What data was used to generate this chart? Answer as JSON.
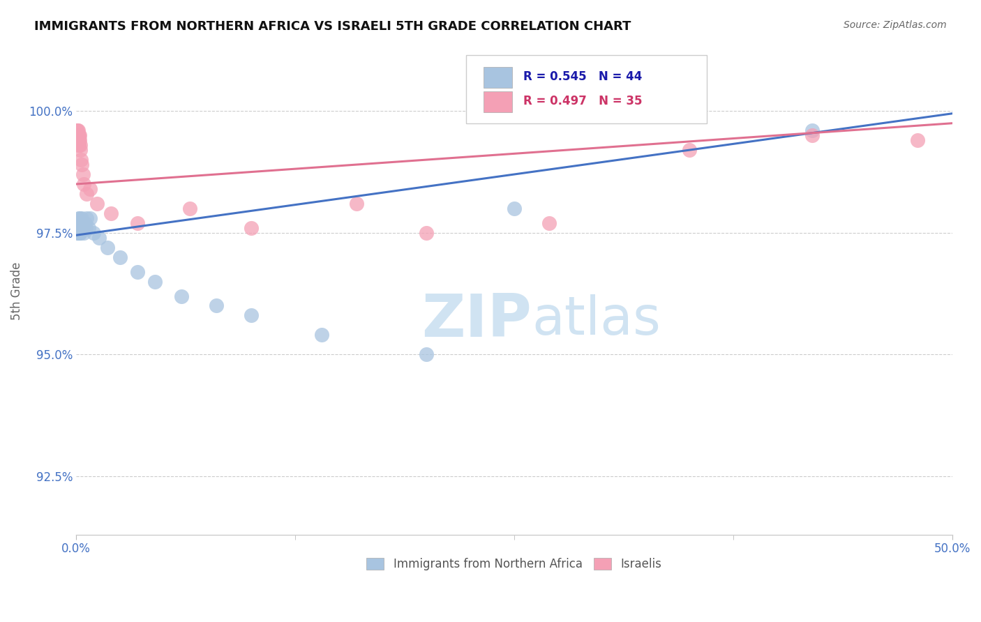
{
  "title": "IMMIGRANTS FROM NORTHERN AFRICA VS ISRAELI 5TH GRADE CORRELATION CHART",
  "source": "Source: ZipAtlas.com",
  "ylabel": "5th Grade",
  "ytick_values": [
    92.5,
    95.0,
    97.5,
    100.0
  ],
  "ytick_labels": [
    "92.5%",
    "95.0%",
    "97.5%",
    "100.0%"
  ],
  "xlim": [
    0.0,
    50.0
  ],
  "ylim": [
    91.3,
    101.3
  ],
  "legend_blue_label": "Immigrants from Northern Africa",
  "legend_pink_label": "Israelis",
  "R_blue": 0.545,
  "N_blue": 44,
  "R_pink": 0.497,
  "N_pink": 35,
  "blue_fill": "#a8c4e0",
  "pink_fill": "#f4a0b5",
  "blue_line": "#4472c4",
  "pink_line": "#e07090",
  "blue_scatter_x": [
    0.05,
    0.07,
    0.09,
    0.1,
    0.11,
    0.12,
    0.13,
    0.14,
    0.15,
    0.16,
    0.17,
    0.18,
    0.19,
    0.2,
    0.21,
    0.22,
    0.24,
    0.25,
    0.27,
    0.3,
    0.32,
    0.35,
    0.38,
    0.4,
    0.42,
    0.45,
    0.5,
    0.55,
    0.6,
    0.7,
    0.8,
    1.0,
    1.3,
    1.8,
    2.5,
    3.5,
    4.5,
    6.0,
    8.0,
    10.0,
    14.0,
    20.0,
    25.0,
    42.0
  ],
  "blue_scatter_y": [
    97.6,
    97.5,
    97.7,
    97.6,
    97.5,
    97.7,
    97.6,
    97.8,
    97.5,
    97.6,
    97.7,
    97.5,
    97.6,
    97.8,
    97.6,
    97.7,
    97.5,
    97.7,
    97.6,
    97.6,
    97.8,
    97.7,
    97.6,
    97.7,
    97.6,
    97.5,
    97.7,
    97.6,
    97.8,
    97.6,
    97.8,
    97.5,
    97.4,
    97.2,
    97.0,
    96.7,
    96.5,
    96.2,
    96.0,
    95.8,
    95.4,
    95.0,
    98.0,
    99.6
  ],
  "pink_scatter_x": [
    0.03,
    0.05,
    0.06,
    0.07,
    0.08,
    0.09,
    0.1,
    0.11,
    0.12,
    0.13,
    0.14,
    0.15,
    0.16,
    0.17,
    0.18,
    0.2,
    0.22,
    0.25,
    0.28,
    0.32,
    0.38,
    0.45,
    0.6,
    0.8,
    1.2,
    2.0,
    3.5,
    6.5,
    10.0,
    16.0,
    20.0,
    27.0,
    35.0,
    42.0,
    48.0
  ],
  "pink_scatter_y": [
    99.5,
    99.6,
    99.4,
    99.5,
    99.6,
    99.4,
    99.5,
    99.6,
    99.4,
    99.5,
    99.3,
    99.5,
    99.4,
    99.3,
    99.5,
    99.4,
    99.3,
    99.2,
    99.0,
    98.9,
    98.7,
    98.5,
    98.3,
    98.4,
    98.1,
    97.9,
    97.7,
    98.0,
    97.6,
    98.1,
    97.5,
    97.7,
    99.2,
    99.5,
    99.4
  ]
}
